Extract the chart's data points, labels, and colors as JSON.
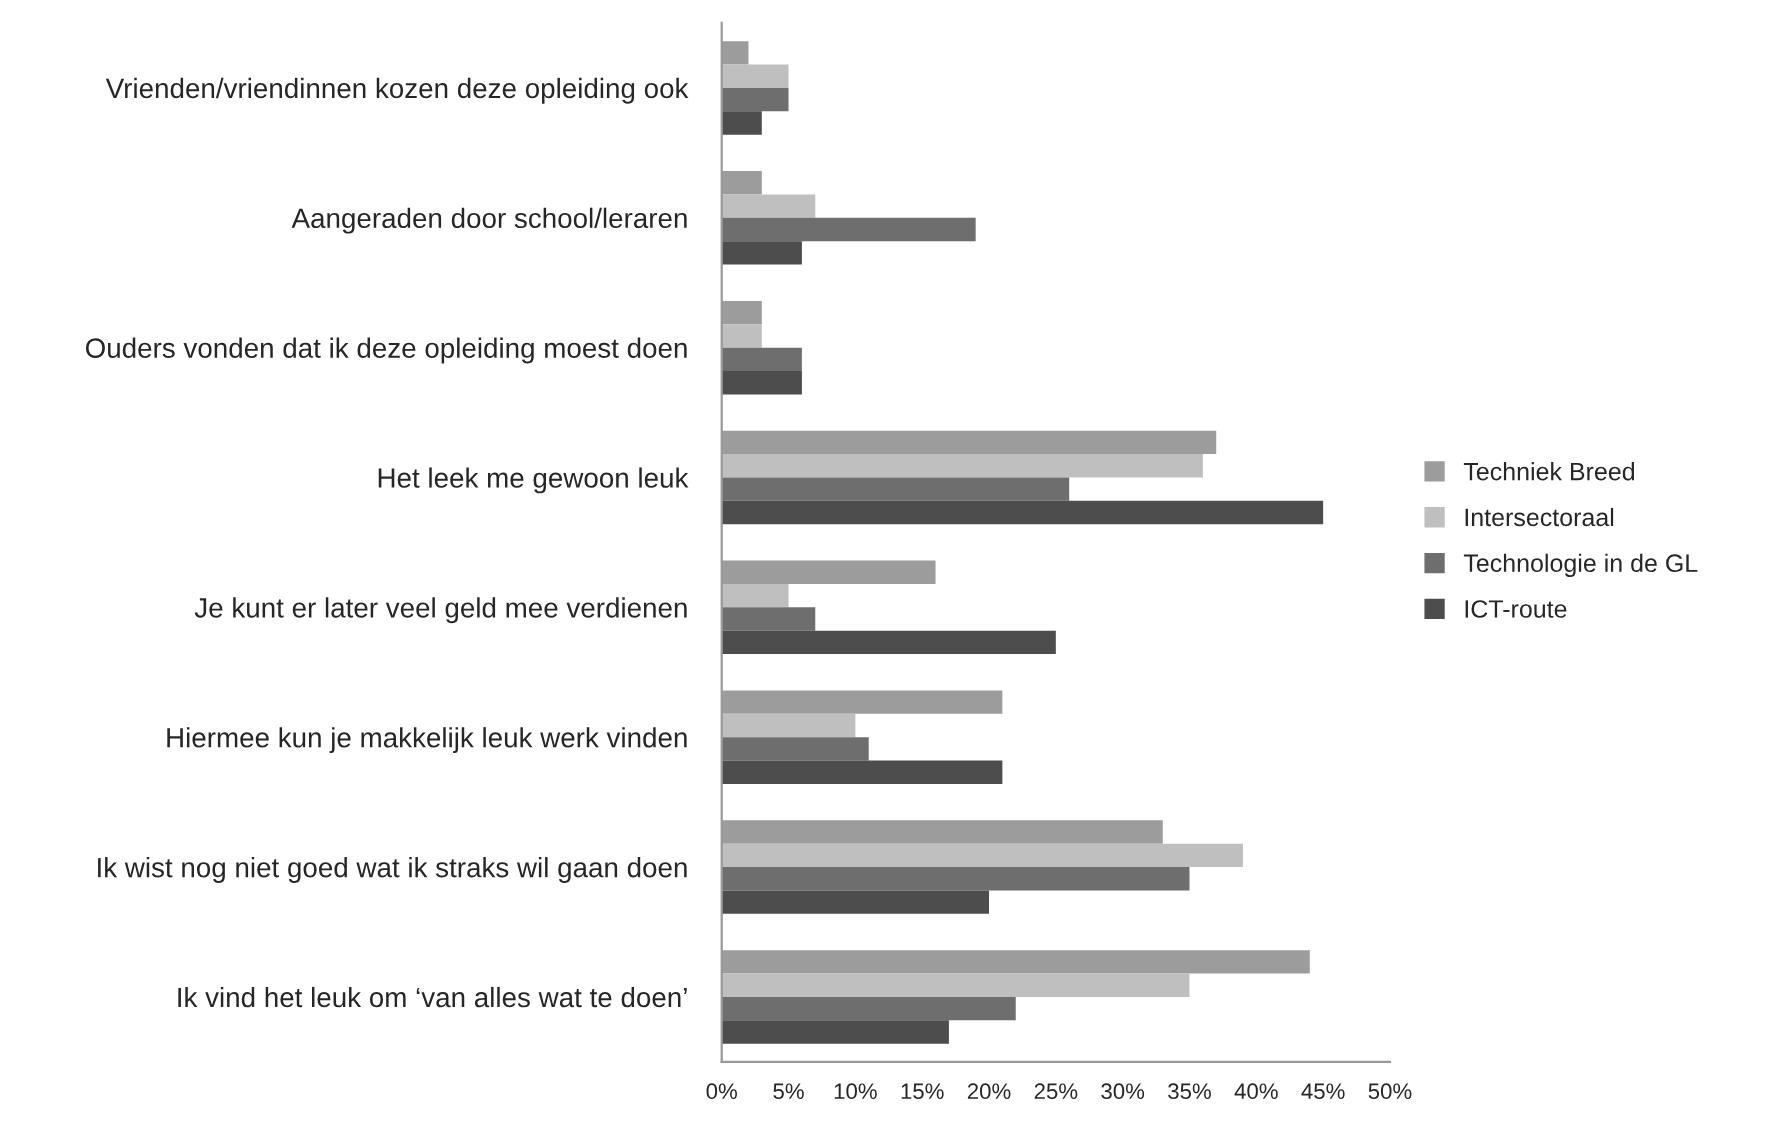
{
  "chart_data": {
    "type": "bar",
    "orientation": "horizontal",
    "categories": [
      "Vrienden/vriendinnen kozen deze opleiding ook",
      "Aangeraden door school/leraren",
      "Ouders vonden dat ik deze opleiding moest doen",
      "Het leek me gewoon leuk",
      "Je kunt er later veel geld mee verdienen",
      "Hiermee kun je makkelijk leuk werk vinden",
      "Ik wist nog niet goed wat ik straks wil gaan doen",
      "Ik vind het leuk om ‘van alles wat te doen’"
    ],
    "series": [
      {
        "name": "Techniek Breed",
        "color": "#9c9c9c",
        "values": [
          2,
          3,
          3,
          37,
          16,
          21,
          33,
          44
        ]
      },
      {
        "name": "Intersectoraal",
        "color": "#bfbfbf",
        "values": [
          5,
          7,
          3,
          36,
          5,
          10,
          39,
          35
        ]
      },
      {
        "name": "Technologie in de GL",
        "color": "#6e6e6e",
        "values": [
          5,
          19,
          6,
          26,
          7,
          11,
          35,
          22
        ]
      },
      {
        "name": "ICT-route",
        "color": "#4d4d4d",
        "values": [
          3,
          6,
          6,
          45,
          25,
          21,
          20,
          17
        ]
      }
    ],
    "xlim": [
      0,
      50
    ],
    "xticks": [
      {
        "value": 0,
        "label": "0%"
      },
      {
        "value": 5,
        "label": "5%"
      },
      {
        "value": 10,
        "label": "10%"
      },
      {
        "value": 15,
        "label": "15%"
      },
      {
        "value": 20,
        "label": "20%"
      },
      {
        "value": 25,
        "label": "25%"
      },
      {
        "value": 30,
        "label": "30%"
      },
      {
        "value": 35,
        "label": "35%"
      },
      {
        "value": 40,
        "label": "40%"
      },
      {
        "value": 45,
        "label": "45%"
      },
      {
        "value": 50,
        "label": "50%"
      }
    ],
    "grid": false,
    "legend": "right"
  }
}
